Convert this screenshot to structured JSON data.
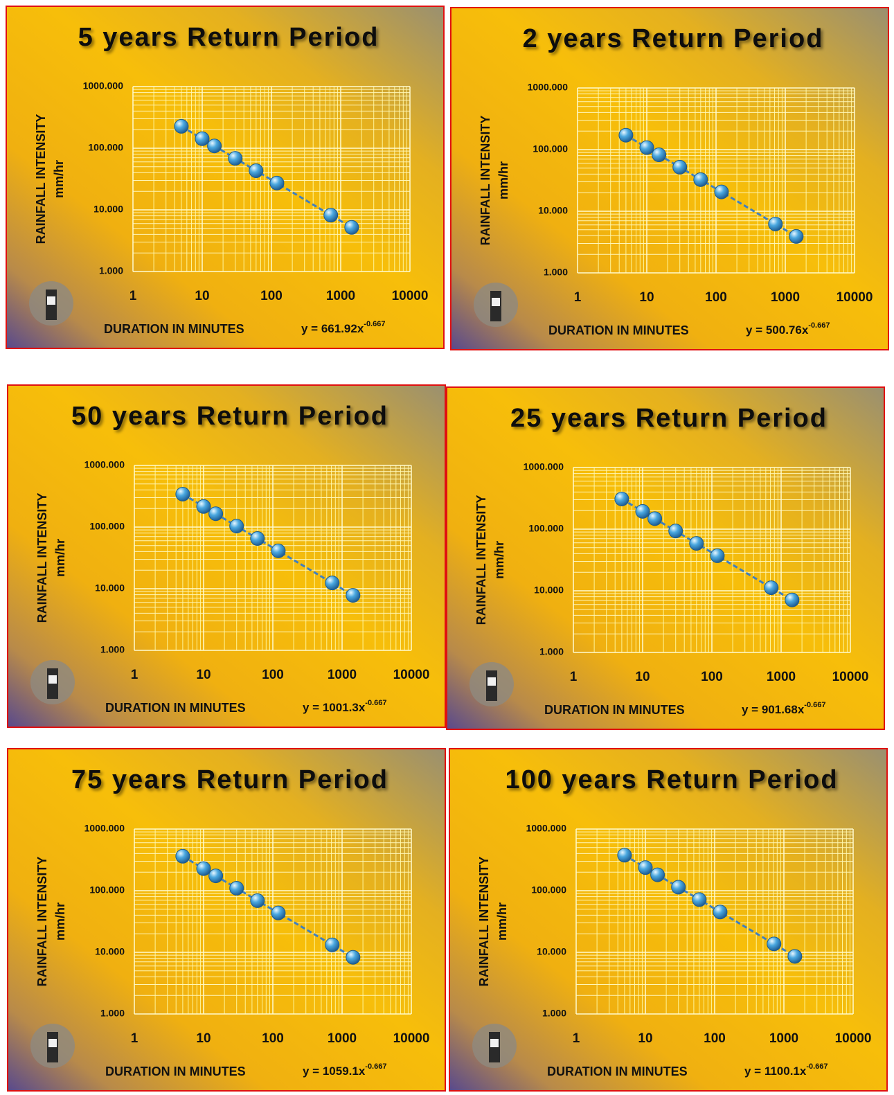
{
  "chart_data": [
    {
      "type": "line",
      "title": "5 years Return Period",
      "xlabel": "DURATION IN MINUTES",
      "ylabel": "RAINFALL INTENSITY",
      "ylabel_unit": "mm/hr",
      "equation": {
        "text": "y = 661.92x",
        "exponent": "-0.667"
      },
      "x": [
        5,
        10,
        15,
        30,
        60,
        120,
        720,
        1440
      ],
      "series": [
        {
          "color": "#4aa8e0",
          "values": [
            226.3,
            142.5,
            108.8,
            68.5,
            43.1,
            27.2,
            8.2,
            5.2
          ]
        }
      ],
      "xlim": [
        1,
        10000
      ],
      "xticks": [
        1,
        10,
        100,
        1000,
        10000
      ],
      "ylim": [
        1,
        1000
      ],
      "yticks": [
        {
          "value": 1,
          "label": "1.000"
        },
        {
          "value": 10,
          "label": "10.000"
        },
        {
          "value": 100,
          "label": "100.000"
        },
        {
          "value": 1000,
          "label": "1000.000"
        }
      ],
      "log_x": true,
      "log_y": true,
      "grid": true,
      "minor_grid": true
    },
    {
      "type": "line",
      "title": "2 years Return Period",
      "xlabel": "DURATION IN MINUTES",
      "ylabel": "RAINFALL INTENSITY",
      "ylabel_unit": "mm/hr",
      "equation": {
        "text": "y = 500.76x",
        "exponent": "-0.667"
      },
      "x": [
        5,
        10,
        15,
        30,
        60,
        120,
        720,
        1440
      ],
      "series": [
        {
          "color": "#4aa8e0",
          "values": [
            171.2,
            107.8,
            82.3,
            51.8,
            32.6,
            20.6,
            6.2,
            3.9
          ]
        }
      ],
      "xlim": [
        1,
        10000
      ],
      "xticks": [
        1,
        10,
        100,
        1000,
        10000
      ],
      "ylim": [
        1,
        1000
      ],
      "yticks": [
        {
          "value": 1,
          "label": "1.000"
        },
        {
          "value": 10,
          "label": "10.000"
        },
        {
          "value": 100,
          "label": "100.000"
        },
        {
          "value": 1000,
          "label": "1000.000"
        }
      ],
      "log_x": true,
      "log_y": true,
      "grid": true,
      "minor_grid": true
    },
    {
      "type": "line",
      "title": "50 years Return Period",
      "xlabel": "DURATION IN MINUTES",
      "ylabel": "RAINFALL INTENSITY",
      "ylabel_unit": "mm/hr",
      "equation": {
        "text": "y = 1001.3x",
        "exponent": "-0.667"
      },
      "x": [
        5,
        10,
        15,
        30,
        60,
        120,
        720,
        1440
      ],
      "series": [
        {
          "color": "#4aa8e0",
          "values": [
            342.3,
            215.6,
            164.5,
            103.6,
            65.2,
            41.1,
            12.4,
            7.8
          ]
        }
      ],
      "xlim": [
        1,
        10000
      ],
      "xticks": [
        1,
        10,
        100,
        1000,
        10000
      ],
      "ylim": [
        1,
        1000
      ],
      "yticks": [
        {
          "value": 1,
          "label": "1.000"
        },
        {
          "value": 10,
          "label": "10.000"
        },
        {
          "value": 100,
          "label": "100.000"
        },
        {
          "value": 1000,
          "label": "1000.000"
        }
      ],
      "log_x": true,
      "log_y": true,
      "grid": true,
      "minor_grid": true
    },
    {
      "type": "line",
      "title": "25 years Return Period",
      "xlabel": "DURATION IN MINUTES",
      "ylabel": "RAINFALL INTENSITY",
      "ylabel_unit": "mm/hr",
      "equation": {
        "text": "y = 901.68x",
        "exponent": "-0.667"
      },
      "x": [
        5,
        10,
        15,
        30,
        60,
        120,
        720,
        1440
      ],
      "series": [
        {
          "color": "#4aa8e0",
          "values": [
            308.3,
            194.1,
            148.1,
            93.3,
            58.7,
            37.0,
            11.2,
            7.1
          ]
        }
      ],
      "xlim": [
        1,
        10000
      ],
      "xticks": [
        1,
        10,
        100,
        1000,
        10000
      ],
      "ylim": [
        1,
        1000
      ],
      "yticks": [
        {
          "value": 1,
          "label": "1.000"
        },
        {
          "value": 10,
          "label": "10.000"
        },
        {
          "value": 100,
          "label": "100.000"
        },
        {
          "value": 1000,
          "label": "1000.000"
        }
      ],
      "log_x": true,
      "log_y": true,
      "grid": true,
      "minor_grid": true
    },
    {
      "type": "line",
      "title": "75 years Return Period",
      "xlabel": "DURATION IN MINUTES",
      "ylabel": "RAINFALL INTENSITY",
      "ylabel_unit": "mm/hr",
      "equation": {
        "text": "y = 1059.1x",
        "exponent": "-0.667"
      },
      "x": [
        5,
        10,
        15,
        30,
        60,
        120,
        720,
        1440
      ],
      "series": [
        {
          "color": "#4aa8e0",
          "values": [
            362.1,
            228.0,
            174.0,
            109.6,
            68.9,
            43.5,
            13.2,
            8.3
          ]
        }
      ],
      "xlim": [
        1,
        10000
      ],
      "xticks": [
        1,
        10,
        100,
        1000,
        10000
      ],
      "ylim": [
        1,
        1000
      ],
      "yticks": [
        {
          "value": 1,
          "label": "1.000"
        },
        {
          "value": 10,
          "label": "10.000"
        },
        {
          "value": 100,
          "label": "100.000"
        },
        {
          "value": 1000,
          "label": "1000.000"
        }
      ],
      "log_x": true,
      "log_y": true,
      "grid": true,
      "minor_grid": true
    },
    {
      "type": "line",
      "title": "100 years Return Period",
      "xlabel": "DURATION IN MINUTES",
      "ylabel": "RAINFALL INTENSITY",
      "ylabel_unit": "mm/hr",
      "equation": {
        "text": "y = 1100.1x",
        "exponent": "-0.667"
      },
      "x": [
        5,
        10,
        15,
        30,
        60,
        120,
        720,
        1440
      ],
      "series": [
        {
          "color": "#4aa8e0",
          "values": [
            376.1,
            236.9,
            180.7,
            113.9,
            71.6,
            45.1,
            13.7,
            8.6
          ]
        }
      ],
      "xlim": [
        1,
        10000
      ],
      "xticks": [
        1,
        10,
        100,
        1000,
        10000
      ],
      "ylim": [
        1,
        1000
      ],
      "yticks": [
        {
          "value": 1,
          "label": "1.000"
        },
        {
          "value": 10,
          "label": "10.000"
        },
        {
          "value": 100,
          "label": "100.000"
        },
        {
          "value": 1000,
          "label": "1000.000"
        }
      ],
      "log_x": true,
      "log_y": true,
      "grid": true,
      "minor_grid": true
    }
  ]
}
